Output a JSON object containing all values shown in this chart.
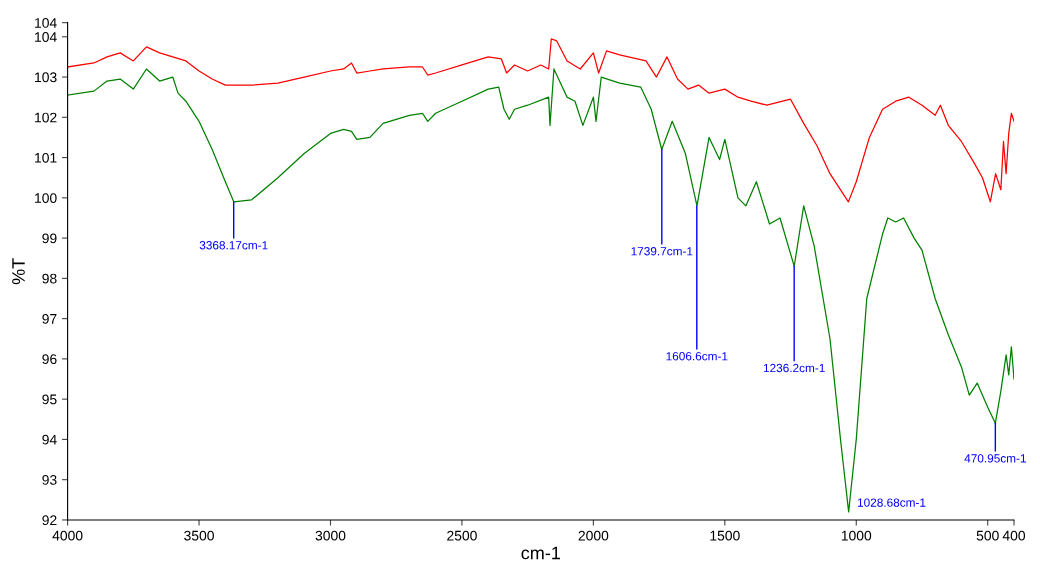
{
  "chart_data": {
    "type": "line",
    "xlabel": "cm-1",
    "ylabel": "%T",
    "xlim": [
      4000,
      400
    ],
    "xticks": [
      4000,
      3500,
      3000,
      2500,
      2000,
      1500,
      1000,
      500,
      400
    ],
    "ylim": [
      92,
      104.35
    ],
    "yticks": [
      92,
      93,
      94,
      95,
      96,
      97,
      98,
      99,
      100,
      101,
      102,
      103,
      104,
      {
        "value": 104.35,
        "label": "104"
      }
    ],
    "grid": false,
    "legend": false,
    "series": [
      {
        "color": "#ff0000",
        "x": [
          4000,
          3900,
          3850,
          3800,
          3750,
          3700,
          3650,
          3600,
          3550,
          3500,
          3450,
          3400,
          3300,
          3200,
          3100,
          3000,
          2950,
          2920,
          2900,
          2850,
          2800,
          2700,
          2650,
          2630,
          2600,
          2500,
          2400,
          2350,
          2330,
          2300,
          2250,
          2200,
          2170,
          2160,
          2140,
          2100,
          2050,
          2000,
          1980,
          1950,
          1900,
          1800,
          1760,
          1720,
          1680,
          1640,
          1600,
          1560,
          1500,
          1450,
          1400,
          1340,
          1250,
          1200,
          1150,
          1100,
          1030,
          1000,
          950,
          900,
          850,
          800,
          750,
          700,
          680,
          650,
          600,
          550,
          520,
          500,
          490,
          470,
          450,
          440,
          430,
          420,
          410,
          400
        ],
        "values": [
          103.25,
          103.35,
          103.5,
          103.6,
          103.4,
          103.75,
          103.6,
          103.5,
          103.4,
          103.15,
          102.95,
          102.8,
          102.8,
          102.85,
          103.0,
          103.15,
          103.2,
          103.35,
          103.1,
          103.15,
          103.2,
          103.25,
          103.25,
          103.05,
          103.1,
          103.3,
          103.5,
          103.45,
          103.1,
          103.3,
          103.15,
          103.3,
          103.2,
          103.95,
          103.9,
          103.4,
          103.2,
          103.6,
          103.1,
          103.65,
          103.55,
          103.4,
          103.0,
          103.5,
          102.95,
          102.7,
          102.8,
          102.6,
          102.7,
          102.5,
          102.4,
          102.3,
          102.45,
          101.85,
          101.3,
          100.6,
          99.9,
          100.4,
          101.5,
          102.2,
          102.4,
          102.5,
          102.3,
          102.05,
          102.3,
          101.8,
          101.4,
          100.85,
          100.5,
          100.1,
          99.9,
          100.6,
          100.2,
          101.4,
          100.6,
          101.6,
          102.1,
          101.9
        ]
      },
      {
        "color": "#008000",
        "x": [
          4000,
          3900,
          3850,
          3800,
          3750,
          3700,
          3650,
          3600,
          3580,
          3550,
          3500,
          3450,
          3400,
          3368,
          3300,
          3200,
          3100,
          3000,
          2950,
          2920,
          2900,
          2850,
          2800,
          2700,
          2650,
          2630,
          2600,
          2500,
          2400,
          2360,
          2340,
          2320,
          2300,
          2250,
          2170,
          2165,
          2150,
          2100,
          2070,
          2040,
          2000,
          1990,
          1970,
          1900,
          1820,
          1780,
          1740,
          1700,
          1650,
          1606,
          1560,
          1520,
          1500,
          1450,
          1420,
          1380,
          1330,
          1290,
          1236,
          1200,
          1160,
          1100,
          1060,
          1029,
          1000,
          960,
          900,
          880,
          850,
          820,
          780,
          750,
          700,
          650,
          600,
          570,
          540,
          500,
          471,
          450,
          430,
          420,
          410,
          400
        ],
        "values": [
          102.55,
          102.65,
          102.9,
          102.95,
          102.7,
          103.2,
          102.9,
          103.0,
          102.6,
          102.4,
          101.9,
          101.2,
          100.4,
          99.9,
          99.95,
          100.5,
          101.1,
          101.6,
          101.7,
          101.65,
          101.45,
          101.5,
          101.85,
          102.05,
          102.1,
          101.9,
          102.1,
          102.4,
          102.7,
          102.75,
          102.2,
          101.95,
          102.2,
          102.3,
          102.5,
          101.8,
          103.2,
          102.5,
          102.4,
          101.8,
          102.5,
          101.9,
          103.0,
          102.85,
          102.75,
          102.2,
          101.2,
          101.9,
          101.1,
          99.8,
          101.5,
          100.95,
          101.45,
          100.0,
          99.8,
          100.4,
          99.35,
          99.5,
          98.3,
          99.8,
          98.8,
          96.5,
          94.0,
          92.2,
          94.0,
          97.5,
          99.1,
          99.5,
          99.4,
          99.5,
          99.0,
          98.7,
          97.5,
          96.6,
          95.8,
          95.1,
          95.4,
          94.8,
          94.4,
          95.2,
          96.1,
          95.6,
          96.3,
          95.5
        ]
      }
    ],
    "annotations": [
      {
        "text": "3368.17cm-1",
        "x": 3368.17,
        "y": 99.9
      },
      {
        "text": "1739.7cm-1",
        "x": 1739.7,
        "y": 101.2
      },
      {
        "text": "1606.6cm-1",
        "x": 1606.6,
        "y": 99.8
      },
      {
        "text": "1236.2cm-1",
        "x": 1236.2,
        "y": 98.3
      },
      {
        "text": "1028.68cm-1",
        "x": 1028.68,
        "y": 92.2
      },
      {
        "text": "470.95cm-1",
        "x": 470.95,
        "y": 94.4
      }
    ]
  }
}
